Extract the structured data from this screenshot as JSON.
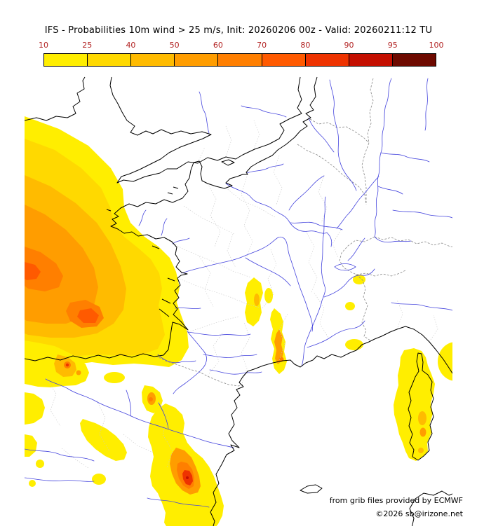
{
  "title": "IFS - Probabilities 10m wind > 25 m/s, Init: 20260206 00z - Valid: 20260211:12 TU",
  "colorbar": {
    "ticks": [
      "10",
      "25",
      "40",
      "50",
      "60",
      "70",
      "80",
      "90",
      "95",
      "100"
    ],
    "tick_color": "#b22222",
    "levels": [
      "10",
      "25",
      "40",
      "50",
      "60",
      "70",
      "80",
      "90",
      "95"
    ],
    "palette": {
      "10": "#ffee00",
      "25": "#ffd900",
      "40": "#ffbb00",
      "50": "#ff9d00",
      "60": "#ff7f00",
      "70": "#ff5a00",
      "80": "#ee3300",
      "90": "#c40f00",
      "95": "#6e0a00"
    }
  },
  "map": {
    "coast_color": "#000000",
    "river_color": "#4444dd",
    "border_color": "#888888",
    "admin_color": "#c9c9c9",
    "sea_color": "#ffffff"
  },
  "footer": {
    "credit": "from grib files provided by ECMWF",
    "copyright": "©2026 sb@irizone.net"
  }
}
